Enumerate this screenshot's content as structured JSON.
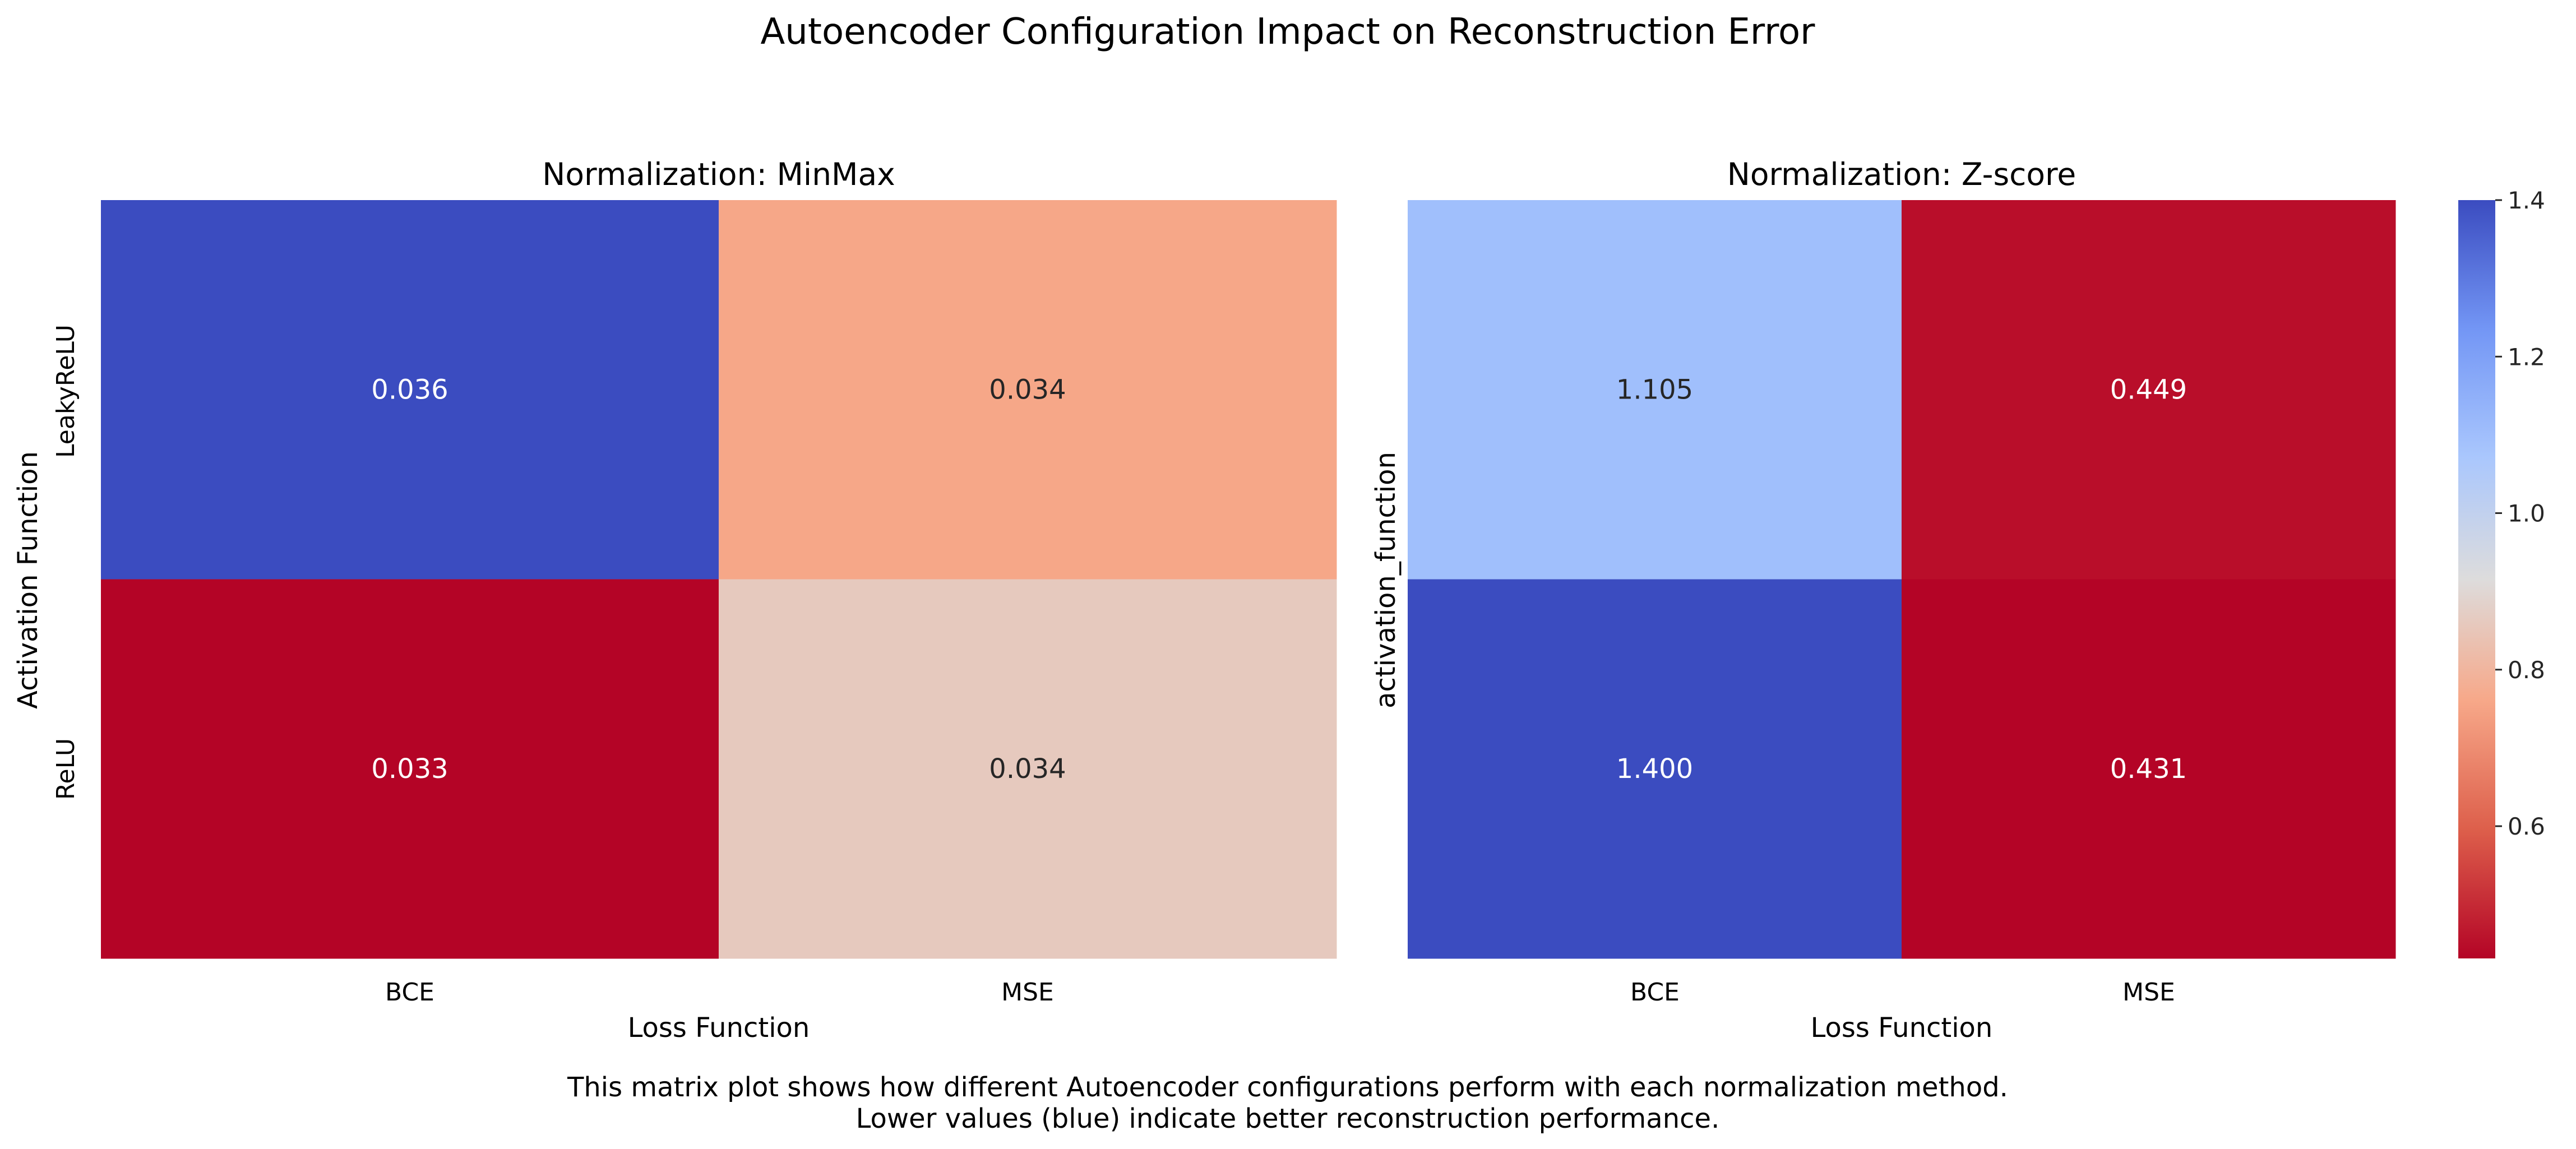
{
  "title": "Autoencoder Configuration Impact on Reconstruction Error",
  "caption": {
    "line1": "This matrix plot shows how different Autoencoder configurations perform with each normalization method.",
    "line2": "Lower values (blue) indicate better reconstruction performance."
  },
  "colormap": {
    "name": "coolwarm_r",
    "stops": [
      "#b40426",
      "#dd5f4b",
      "#f7a889",
      "#dddcdc",
      "#aac7fd",
      "#7396f5",
      "#3b4cc0"
    ]
  },
  "chart_data": [
    {
      "type": "heatmap",
      "title": "Normalization: MinMax",
      "xlabel": "Loss Function",
      "ylabel": "Activation Function",
      "x": [
        "BCE",
        "MSE"
      ],
      "y": [
        "LeakyReLU",
        "ReLU"
      ],
      "values": [
        [
          0.036,
          0.034
        ],
        [
          0.033,
          0.034
        ]
      ],
      "labels": [
        [
          "0.036",
          "0.034"
        ],
        [
          "0.033",
          "0.034"
        ]
      ],
      "fill_fraction": [
        [
          1.0,
          0.33
        ],
        [
          0.0,
          0.44
        ]
      ]
    },
    {
      "type": "heatmap",
      "title": "Normalization: Z-score",
      "xlabel": "Loss Function",
      "ylabel": "activation_function",
      "x": [
        "BCE",
        "MSE"
      ],
      "y": [
        "LeakyReLU",
        "ReLU"
      ],
      "show_y_ticks": false,
      "values": [
        [
          1.105,
          0.449
        ],
        [
          1.4,
          0.431
        ]
      ],
      "labels": [
        [
          "1.105",
          "0.449"
        ],
        [
          "1.400",
          "0.431"
        ]
      ],
      "colorbar": {
        "range": [
          0.431,
          1.4
        ],
        "ticks": [
          0.6,
          0.8,
          1.0,
          1.2,
          1.4
        ],
        "tick_labels": [
          "0.6",
          "0.8",
          "1.0",
          "1.2",
          "1.4"
        ]
      }
    }
  ]
}
